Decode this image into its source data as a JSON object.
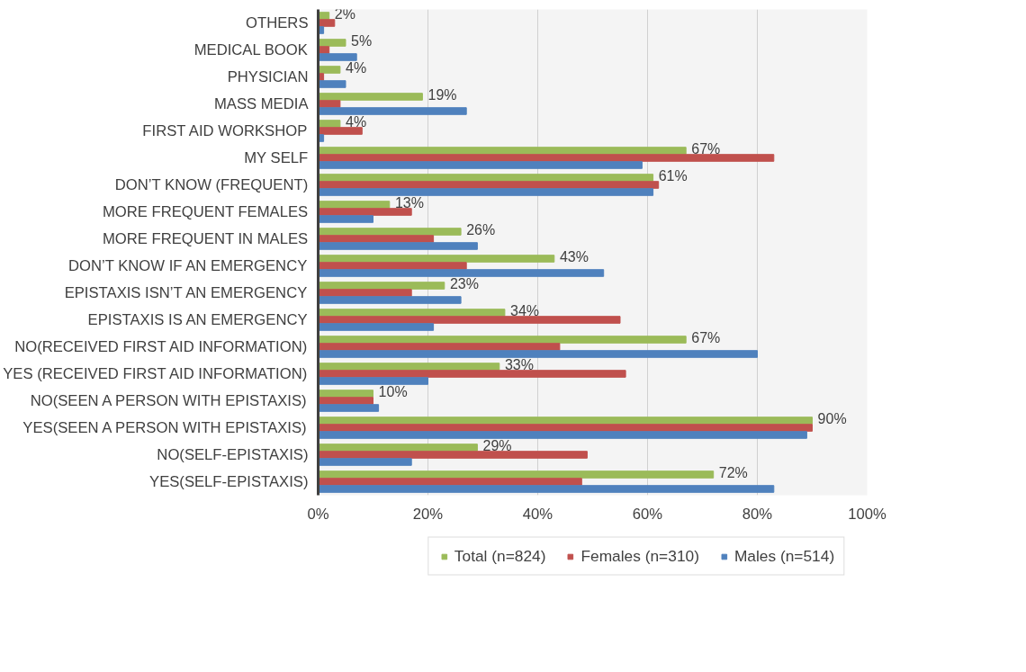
{
  "chart_data": {
    "type": "bar",
    "orientation": "horizontal",
    "categories": [
      "OTHERS",
      "MEDICAL BOOK",
      "PHYSICIAN",
      "MASS MEDIA",
      "FIRST AID WORKSHOP",
      "MY SELF",
      "DON’T KNOW (FREQUENT)",
      "MORE FREQUENT FEMALES",
      "MORE FREQUENT IN MALES",
      "DON’T KNOW IF AN EMERGENCY",
      "EPISTAXIS ISN’T AN EMERGENCY",
      "EPISTAXIS IS AN EMERGENCY",
      "NO(RECEIVED FIRST AID INFORMATION)",
      "YES (RECEIVED FIRST AID INFORMATION)",
      "NO(SEEN A PERSON WITH EPISTAXIS)",
      "YES(SEEN A PERSON WITH EPISTAXIS)",
      "NO(SELF-EPISTAXIS)",
      "YES(SELF-EPISTAXIS)"
    ],
    "series": [
      {
        "name": "Total (n=824)",
        "color": "#9bbb59",
        "values": [
          2,
          5,
          4,
          19,
          4,
          67,
          61,
          13,
          26,
          43,
          23,
          34,
          67,
          33,
          10,
          90,
          29,
          72
        ],
        "value_labels": [
          "2%",
          "5%",
          "4%",
          "19%",
          "4%",
          "67%",
          "61%",
          "13%",
          "26%",
          "43%",
          "23%",
          "34%",
          "67%",
          "33%",
          "10%",
          "90%",
          "29%",
          "72%"
        ]
      },
      {
        "name": "Females (n=310)",
        "color": "#c0504d",
        "values": [
          3,
          2,
          1,
          4,
          8,
          83,
          62,
          17,
          21,
          27,
          17,
          55,
          44,
          56,
          10,
          90,
          49,
          48
        ]
      },
      {
        "name": "Males (n=514)",
        "color": "#4f81bd",
        "values": [
          1,
          7,
          5,
          27,
          1,
          59,
          61,
          10,
          29,
          52,
          26,
          21,
          80,
          20,
          11,
          89,
          17,
          83
        ]
      }
    ],
    "xlim": [
      0,
      100
    ],
    "xticks": [
      {
        "value": 0,
        "label": "0%"
      },
      {
        "value": 20,
        "label": "20%"
      },
      {
        "value": 40,
        "label": "40%"
      },
      {
        "value": 60,
        "label": "60%"
      },
      {
        "value": 80,
        "label": "80%"
      },
      {
        "value": 100,
        "label": "100%"
      }
    ],
    "grid": "x",
    "legend": "bottom"
  }
}
